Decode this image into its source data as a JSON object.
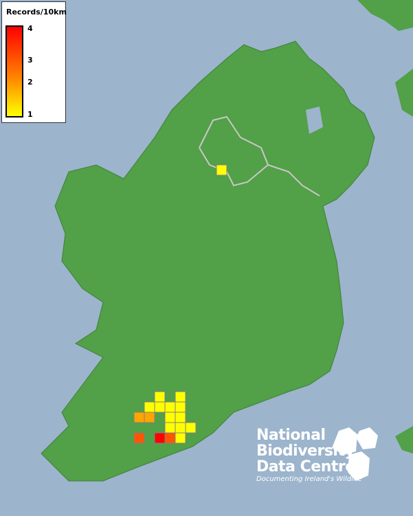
{
  "legend": {
    "title": "Records/10km",
    "ticks": [
      "4",
      "3",
      "2",
      "1"
    ],
    "colors": {
      "min": "#ffff00",
      "mid": "#ff8000",
      "max": "#ff0000"
    }
  },
  "colors": {
    "sea": "#9cb4cc",
    "land": "#4f9a45",
    "border": "#c8c8c8",
    "cell_outline": "#808080"
  },
  "records": [
    {
      "row": 0,
      "col": 2,
      "value": 1
    },
    {
      "row": 0,
      "col": 4,
      "value": 1
    },
    {
      "row": 1,
      "col": 1,
      "value": 1
    },
    {
      "row": 1,
      "col": 2,
      "value": 1
    },
    {
      "row": 1,
      "col": 3,
      "value": 1
    },
    {
      "row": 1,
      "col": 4,
      "value": 1
    },
    {
      "row": 2,
      "col": 0,
      "value": 2
    },
    {
      "row": 2,
      "col": 1,
      "value": 2
    },
    {
      "row": 2,
      "col": 3,
      "value": 1
    },
    {
      "row": 2,
      "col": 4,
      "value": 1
    },
    {
      "row": 3,
      "col": 3,
      "value": 1
    },
    {
      "row": 3,
      "col": 4,
      "value": 1
    },
    {
      "row": 3,
      "col": 5,
      "value": 1
    },
    {
      "row": 4,
      "col": 0,
      "value": 3
    },
    {
      "row": 4,
      "col": 2,
      "value": 4
    },
    {
      "row": 4,
      "col": 3,
      "value": 3
    },
    {
      "row": 4,
      "col": 4,
      "value": 1
    },
    {
      "row": -22,
      "col": 8,
      "value": 1
    }
  ],
  "logo": {
    "line1": "National",
    "line2": "Biodiversity",
    "line3": "Data Centre",
    "tagline": "Documenting Ireland's Wildlife"
  }
}
